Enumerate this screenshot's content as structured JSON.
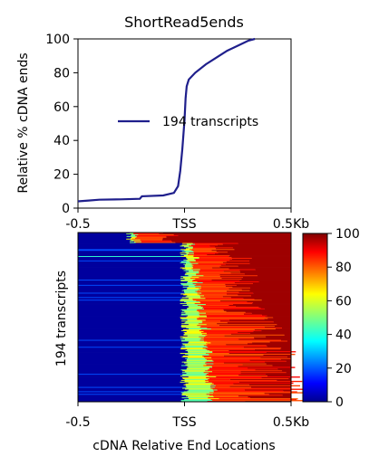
{
  "chart_data": [
    {
      "type": "line",
      "title": "ShortRead5ends",
      "ylabel": "Relative % cDNA ends",
      "xlabel": "",
      "xticks": [
        "-0.5",
        "TSS",
        "0.5Kb"
      ],
      "ylim": [
        0,
        100
      ],
      "yticks": [
        "0",
        "20",
        "40",
        "60",
        "80",
        "100"
      ],
      "xlim": [
        -0.5,
        0.5
      ],
      "legend_position": "center",
      "grid": false,
      "colors": {
        "line": "#1f1f8c"
      },
      "series": [
        {
          "name": "194 transcripts",
          "x": [
            -0.5,
            -0.45,
            -0.4,
            -0.3,
            -0.21,
            -0.2,
            -0.1,
            -0.05,
            -0.03,
            -0.02,
            -0.01,
            0.0,
            0.005,
            0.01,
            0.02,
            0.05,
            0.1,
            0.15,
            0.2,
            0.25,
            0.3,
            0.33
          ],
          "y": [
            4,
            4.5,
            5,
            5.2,
            5.5,
            7,
            7.5,
            9,
            13,
            22,
            35,
            52,
            65,
            72,
            76,
            80,
            85,
            89,
            93,
            96,
            99,
            100
          ]
        }
      ]
    },
    {
      "type": "heatmap",
      "ylabel": "194 transcripts",
      "xlabel": "cDNA Relative End Locations",
      "xticks": [
        "-0.5",
        "TSS",
        "0.5Kb"
      ],
      "rows": 194,
      "colorbar": {
        "min": 0,
        "max": 100,
        "ticks": [
          "0",
          "20",
          "40",
          "60",
          "80",
          "100"
        ],
        "colormap": "jet"
      },
      "colors": {
        "low": "#00008f",
        "mid": "#7fff7f",
        "high": "#7f0000"
      }
    }
  ]
}
